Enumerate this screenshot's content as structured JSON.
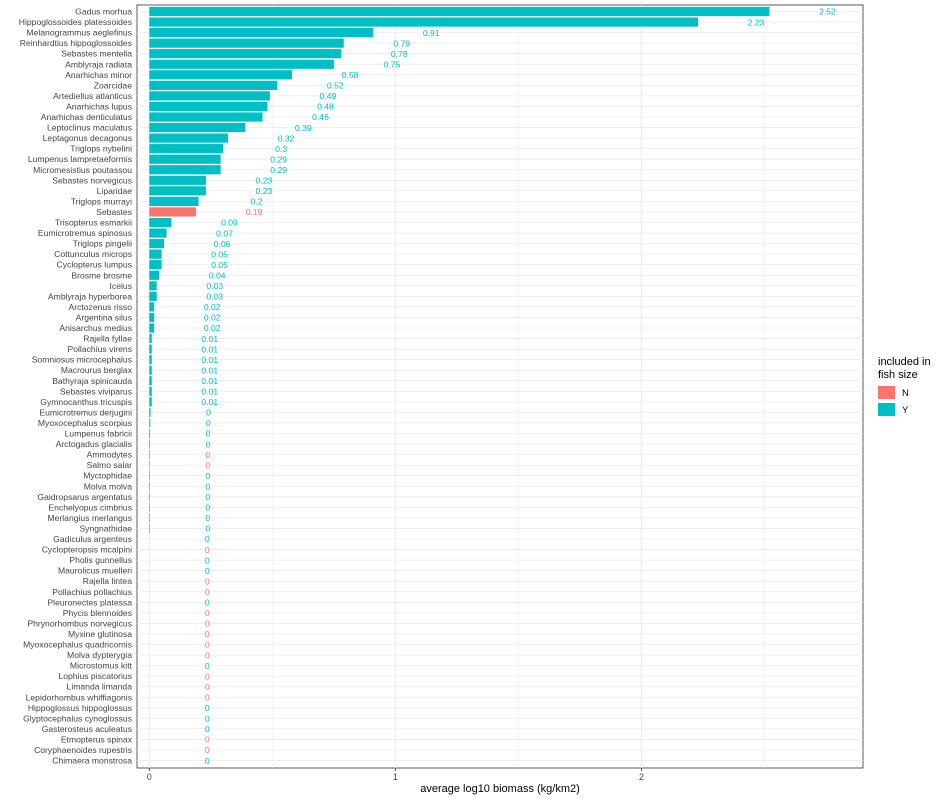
{
  "chart_data": {
    "type": "bar",
    "orientation": "horizontal",
    "xlabel": "average log10 biomass (kg/km2)",
    "ylabel": "",
    "xlim": [
      -0.05,
      2.9
    ],
    "x_ticks": [
      0,
      1,
      2
    ],
    "grid": true,
    "legend": {
      "title": "included in fish size",
      "position": "right",
      "items": [
        {
          "label": "N",
          "color": "#F8766D"
        },
        {
          "label": "Y",
          "color": "#00BFC4"
        }
      ]
    },
    "data_labels": true,
    "categories": [
      "Gadus morhua",
      "Hippoglossoides platessoides",
      "Melanogrammus aeglefinus",
      "Reinhardtius hippoglossoides",
      "Sebastes mentella",
      "Amblyraja radiata",
      "Anarhichas minor",
      "Zoarcidae",
      "Artediellus atlanticus",
      "Anarhichas lupus",
      "Anarhichas denticulatus",
      "Leptoclinus maculatus",
      "Leptagonus decagonus",
      "Triglops nybelini",
      "Lumpenus lampretaeformis",
      "Micromesistius poutassou",
      "Sebastes norvegicus",
      "Liparidae",
      "Triglops murrayi",
      "Sebastes",
      "Trisopterus esmarkii",
      "Eumicrotremus spinosus",
      "Triglops pingelii",
      "Cottunculus microps",
      "Cyclopterus lumpus",
      "Brosme brosme",
      "Icelus",
      "Amblyraja hyperborea",
      "Arctozenus risso",
      "Argentina silus",
      "Anisarchus medius",
      "Rajella fyllae",
      "Pollachius virens",
      "Somniosus microcephalus",
      "Macrourus berglax",
      "Bathyraja spinicauda",
      "Sebastes viviparus",
      "Gymnocanthus tricuspis",
      "Eumicrotremus derjugini",
      "Myoxocephalus scorpius",
      "Lumpenus fabricii",
      "Arctogadus glacialis",
      "Ammodytes",
      "Salmo salar",
      "Myctophidae",
      "Molva molva",
      "Gaidropsarus argentatus",
      "Enchelyopus cimbrius",
      "Merlangius merlangus",
      "Syngnathidae",
      "Gadiculus argenteus",
      "Cyclopteropsis mcalpini",
      "Pholis gunnellus",
      "Maurolicus muelleri",
      "Rajella lintea",
      "Pollachius pollachius",
      "Pleuronectes platessa",
      "Phycis blennoides",
      "Phrynorhombus norvegicus",
      "Myxine glutinosa",
      "Myoxocephalus quadricornis",
      "Molva dypterygia",
      "Microstomus kitt",
      "Lophius piscatorius",
      "Limanda limanda",
      "Lepidorhombus whiffiagonis",
      "Hippoglossus hippoglossus",
      "Glyptocephalus cynoglossus",
      "Gasterosteus aculeatus",
      "Etmopterus spinax",
      "Coryphaenoides rupestris",
      "Chimaera monstrosa"
    ],
    "values": [
      2.52,
      2.23,
      0.91,
      0.79,
      0.78,
      0.75,
      0.58,
      0.52,
      0.49,
      0.48,
      0.46,
      0.39,
      0.32,
      0.3,
      0.29,
      0.29,
      0.23,
      0.23,
      0.2,
      0.19,
      0.09,
      0.07,
      0.06,
      0.05,
      0.05,
      0.04,
      0.03,
      0.03,
      0.02,
      0.02,
      0.02,
      0.01,
      0.01,
      0.01,
      0.01,
      0.01,
      0.01,
      0.01,
      0.005,
      0.004,
      0.003,
      0.003,
      0.003,
      0.002,
      0.002,
      0.002,
      0.002,
      0.002,
      0.002,
      0.002,
      0,
      0,
      0,
      0,
      0,
      0,
      0,
      0,
      0,
      0,
      0,
      0,
      0,
      0,
      0,
      0,
      0,
      0,
      0,
      0,
      0,
      0
    ],
    "labels": [
      "2.52",
      "2.23",
      "0.91",
      "0.79",
      "0.78",
      "0.75",
      "0.58",
      "0.52",
      "0.49",
      "0.48",
      "0.46",
      "0.39",
      "0.32",
      "0.3",
      "0.29",
      "0.29",
      "0.23",
      "0.23",
      "0.2",
      "0.19",
      "0.09",
      "0.07",
      "0.06",
      "0.05",
      "0.05",
      "0.04",
      "0.03",
      "0.03",
      "0.02",
      "0.02",
      "0.02",
      "0.01",
      "0.01",
      "0.01",
      "0.01",
      "0.01",
      "0.01",
      "0.01",
      "0",
      "0",
      "0",
      "0",
      "0",
      "0",
      "0",
      "0",
      "0",
      "0",
      "0",
      "0",
      "0",
      "0",
      "0",
      "0",
      "0",
      "0",
      "0",
      "0",
      "0",
      "0",
      "0",
      "0",
      "0",
      "0",
      "0",
      "0",
      "0",
      "0",
      "0",
      "0",
      "0",
      "0"
    ],
    "included": [
      "Y",
      "Y",
      "Y",
      "Y",
      "Y",
      "Y",
      "Y",
      "Y",
      "Y",
      "Y",
      "Y",
      "Y",
      "Y",
      "Y",
      "Y",
      "Y",
      "Y",
      "Y",
      "Y",
      "N",
      "Y",
      "Y",
      "Y",
      "Y",
      "Y",
      "Y",
      "Y",
      "Y",
      "Y",
      "Y",
      "Y",
      "Y",
      "Y",
      "Y",
      "Y",
      "Y",
      "Y",
      "Y",
      "Y",
      "Y",
      "Y",
      "Y",
      "N",
      "N",
      "Y",
      "Y",
      "Y",
      "Y",
      "Y",
      "Y",
      "Y",
      "N",
      "Y",
      "Y",
      "N",
      "N",
      "Y",
      "N",
      "N",
      "N",
      "N",
      "N",
      "Y",
      "N",
      "N",
      "N",
      "Y",
      "Y",
      "Y",
      "N",
      "N",
      "Y"
    ]
  }
}
